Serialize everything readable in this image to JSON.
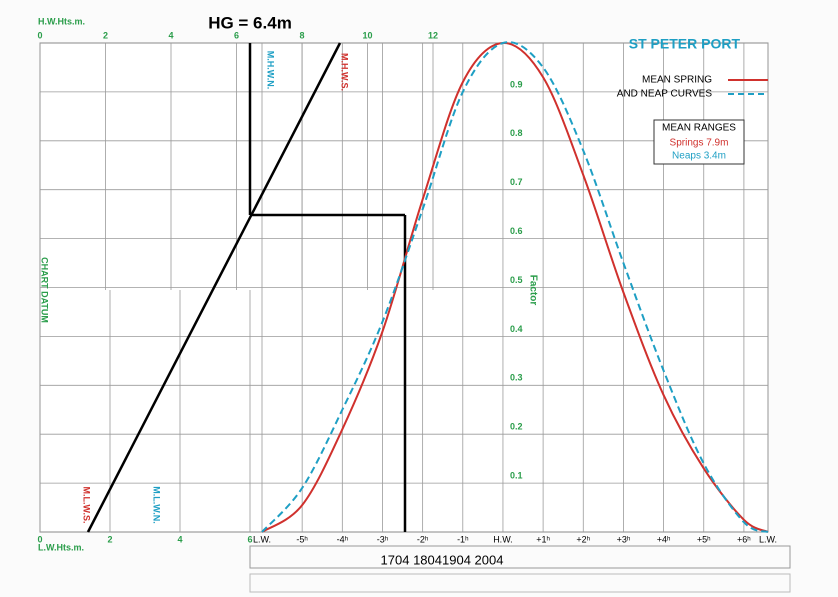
{
  "chart_data": {
    "type": "line",
    "title": "ST PETER PORT",
    "annotation": "HG = 6.4m",
    "times": "1704 18041904  2004",
    "ylabel": "Factor",
    "left_label": "CHART DATUM",
    "level_labels": [
      "M.H.W.N.",
      "M.H.W.S.",
      "M.L.W.S.",
      "M.L.W.N."
    ],
    "legend_lines": [
      "MEAN SPRING",
      "AND NEAP CURVES"
    ],
    "ranges": {
      "title": "MEAN RANGES",
      "springs": "Springs 7.9m",
      "neaps": "Neaps 3.4m"
    },
    "top_axis": {
      "label": "H.W.Hts.m.",
      "lim": [
        0,
        12
      ],
      "ticks": [
        0,
        2,
        4,
        6,
        8,
        10,
        12
      ]
    },
    "bottom_axis": {
      "label": "L.W.Hts.m.",
      "lim": [
        0,
        6
      ],
      "ticks": [
        0,
        2,
        4,
        6
      ]
    },
    "x": [
      -6,
      -5,
      -4,
      -3,
      -2,
      -1,
      0,
      1,
      2,
      3,
      4,
      5,
      6,
      6.6
    ],
    "xlim": [
      -6,
      6.6
    ],
    "xticks": [
      {
        "value": -6,
        "label": "L.W."
      },
      {
        "value": -5,
        "label": "-5ʰ"
      },
      {
        "value": -4,
        "label": "-4ʰ"
      },
      {
        "value": -3,
        "label": "-3ʰ"
      },
      {
        "value": -2,
        "label": "-2ʰ"
      },
      {
        "value": -1,
        "label": "-1ʰ"
      },
      {
        "value": 0,
        "label": "H.W."
      },
      {
        "value": 1,
        "label": "+1ʰ"
      },
      {
        "value": 2,
        "label": "+2ʰ"
      },
      {
        "value": 3,
        "label": "+3ʰ"
      },
      {
        "value": 4,
        "label": "+4ʰ"
      },
      {
        "value": 5,
        "label": "+5ʰ"
      },
      {
        "value": 6,
        "label": "+6ʰ"
      },
      {
        "value": 6.6,
        "label": "L.W."
      }
    ],
    "ylim": [
      0,
      1
    ],
    "yticks": [
      0.1,
      0.2,
      0.3,
      0.4,
      0.5,
      0.6,
      0.7,
      0.8,
      0.9
    ],
    "grid": true,
    "series": [
      {
        "name": "Springs",
        "color": "#d0312d",
        "dash": false,
        "values": [
          0,
          0.055,
          0.21,
          0.41,
          0.68,
          0.92,
          1,
          0.93,
          0.73,
          0.49,
          0.28,
          0.13,
          0.025,
          0
        ]
      },
      {
        "name": "Neaps",
        "color": "#1e9fc4",
        "dash": true,
        "values": [
          0,
          0.09,
          0.25,
          0.43,
          0.66,
          0.9,
          1,
          0.95,
          0.78,
          0.55,
          0.33,
          0.14,
          0.02,
          0
        ]
      }
    ]
  }
}
